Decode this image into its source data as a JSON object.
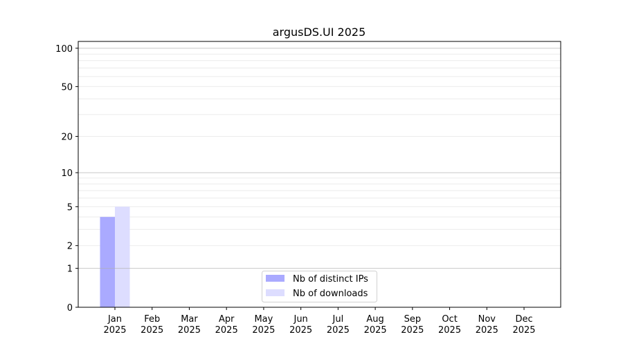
{
  "chart_data": {
    "type": "bar",
    "title": "argusDS.UI 2025",
    "xlabel": "",
    "ylabel": "",
    "yscale": "log(1+y)",
    "ylim": [
      0,
      113
    ],
    "yticks": [
      0,
      1,
      2,
      5,
      10,
      20,
      50,
      100
    ],
    "ytick_labels": [
      "0",
      "1",
      "2",
      "5",
      "10",
      "20",
      "50",
      "100"
    ],
    "grid": true,
    "legend_position": "lower-center",
    "categories": [
      [
        "Jan",
        "2025"
      ],
      [
        "Feb",
        "2025"
      ],
      [
        "Mar",
        "2025"
      ],
      [
        "Apr",
        "2025"
      ],
      [
        "May",
        "2025"
      ],
      [
        "Jun",
        "2025"
      ],
      [
        "Jul",
        "2025"
      ],
      [
        "Aug",
        "2025"
      ],
      [
        "Sep",
        "2025"
      ],
      [
        "Oct",
        "2025"
      ],
      [
        "Nov",
        "2025"
      ],
      [
        "Dec",
        "2025"
      ]
    ],
    "series": [
      {
        "name": "Nb of distinct IPs",
        "color": "#aaaaff",
        "values": [
          4,
          0,
          0,
          0,
          0,
          0,
          0,
          0,
          0,
          0,
          0,
          0
        ]
      },
      {
        "name": "Nb of downloads",
        "color": "#ddddff",
        "values": [
          5,
          0,
          0,
          0,
          0,
          0,
          0,
          0,
          0,
          0,
          0,
          0
        ]
      }
    ]
  }
}
